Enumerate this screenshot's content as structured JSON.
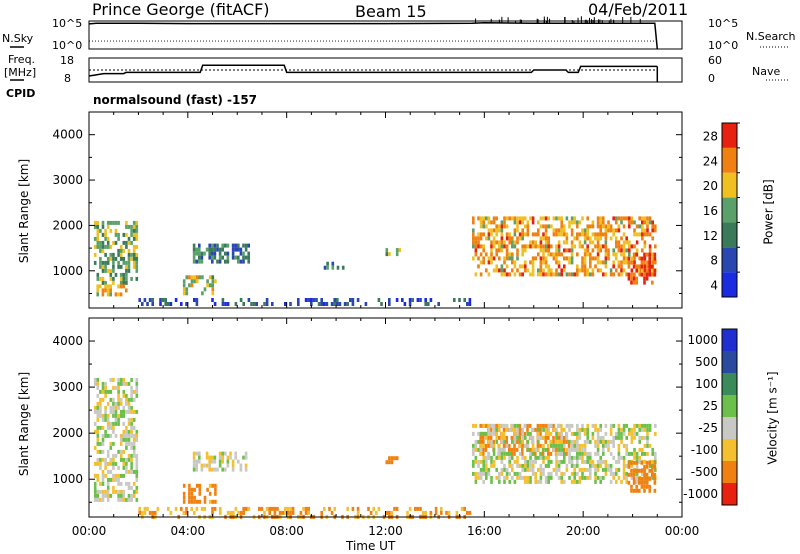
{
  "header": {
    "station": "Prince George (fitACF)",
    "beam": "Beam 15",
    "date": "04/Feb/2011"
  },
  "labels": {
    "nsky": "N.Sky",
    "nsky_ticks": [
      "10^5",
      "10^0"
    ],
    "nsearch": "N.Search",
    "freq": "Freq.",
    "freq_unit": "[MHz]",
    "freq_ticks": [
      "18",
      "8"
    ],
    "nave_ticks": [
      "60",
      "0"
    ],
    "nave": "Nave",
    "cpid": "CPID",
    "cpid_value": "normalsound (fast) -157",
    "ylabel": "Slant Range [km]",
    "xlabel": "Time UT",
    "power_label": "Power [dB]",
    "velocity_label": "Velocity [m s⁻¹]"
  },
  "chart_data": [
    {
      "type": "line",
      "title": "N.Sky / N.Search",
      "x_range": [
        0,
        24
      ],
      "y_scale": "log",
      "y_ticks": [
        "10^5",
        "10^0"
      ],
      "series": [
        {
          "name": "N.Sky",
          "x": [
            0,
            0.3,
            2,
            4,
            8,
            12,
            15.5,
            16,
            18,
            20,
            22,
            22.9,
            23.0
          ],
          "y": [
            30000,
            40000,
            40000,
            35000,
            35000,
            35000,
            40000,
            50000,
            40000,
            40000,
            40000,
            40000,
            1
          ]
        },
        {
          "name": "N.Search",
          "x": [
            0,
            23
          ],
          "y": [
            5,
            5
          ]
        }
      ]
    },
    {
      "type": "line",
      "title": "Freq / Nave",
      "x_range": [
        0,
        24
      ],
      "left_axis": {
        "label": "Freq. [MHz]",
        "ticks": [
          18,
          8
        ]
      },
      "right_axis": {
        "label": "Nave",
        "ticks": [
          60,
          0
        ]
      },
      "series": [
        {
          "name": "Freq",
          "x": [
            0,
            0.6,
            1.4,
            1.5,
            4.5,
            4.6,
            7.9,
            8.0,
            17.9,
            18.0,
            19.3,
            19.4,
            19.8,
            19.9,
            23.0
          ],
          "y": [
            10.5,
            11.5,
            11.5,
            12,
            12,
            15,
            15,
            12,
            12,
            13,
            13,
            12,
            12,
            14.5,
            14.5
          ]
        },
        {
          "name": "Nave",
          "x": [
            0,
            23
          ],
          "y": [
            30,
            30
          ]
        }
      ]
    },
    {
      "type": "heatmap",
      "title": "Power",
      "xlabel": "Time UT",
      "ylabel": "Slant Range [km]",
      "x_range": [
        0,
        24
      ],
      "y_range": [
        180,
        4500
      ],
      "x_ticks": [
        "00:00",
        "04:00",
        "08:00",
        "12:00",
        "16:00",
        "20:00",
        "00:00"
      ],
      "y_ticks": [
        1000,
        2000,
        3000,
        4000
      ],
      "colorbar": {
        "label": "Power [dB]",
        "ticks": [
          4,
          8,
          12,
          16,
          20,
          24,
          28
        ]
      },
      "regions": [
        {
          "t0": 0.2,
          "t1": 2.0,
          "r0": 700,
          "r1": 2100,
          "level_db": 14
        },
        {
          "t0": 0.3,
          "t1": 1.6,
          "r0": 400,
          "r1": 700,
          "level_db": 18
        },
        {
          "t0": 3.8,
          "t1": 5.2,
          "r0": 500,
          "r1": 900,
          "level_db": 16
        },
        {
          "t0": 4.2,
          "t1": 6.5,
          "r0": 1200,
          "r1": 1600,
          "level_db": 10
        },
        {
          "t0": 9.5,
          "t1": 10.5,
          "r0": 1000,
          "r1": 1200,
          "level_db": 10
        },
        {
          "t0": 12.0,
          "t1": 12.6,
          "r0": 1300,
          "r1": 1500,
          "level_db": 16
        },
        {
          "t0": 15.5,
          "t1": 23.0,
          "r0": 900,
          "r1": 2200,
          "level_db": 20
        },
        {
          "t0": 21.8,
          "t1": 23.0,
          "r0": 700,
          "r1": 1400,
          "level_db": 24
        },
        {
          "t0": 2.0,
          "t1": 15.5,
          "r0": 180,
          "r1": 400,
          "level_db": 6
        }
      ]
    },
    {
      "type": "heatmap",
      "title": "Velocity",
      "xlabel": "Time UT",
      "ylabel": "Slant Range [km]",
      "x_range": [
        0,
        24
      ],
      "y_range": [
        180,
        4500
      ],
      "x_ticks": [
        "00:00",
        "04:00",
        "08:00",
        "12:00",
        "16:00",
        "20:00",
        "00:00"
      ],
      "y_ticks": [
        1000,
        2000,
        3000,
        4000
      ],
      "colorbar": {
        "label": "Velocity [m s⁻¹]",
        "ticks": [
          1000,
          500,
          100,
          25,
          -25,
          -100,
          -500,
          -1000
        ]
      },
      "regions": [
        {
          "t0": 0.2,
          "t1": 2.0,
          "r0": 500,
          "r1": 3200,
          "velocity": 0
        },
        {
          "t0": 4.2,
          "t1": 6.5,
          "r0": 1200,
          "r1": 1600,
          "velocity": 0
        },
        {
          "t0": 3.8,
          "t1": 5.2,
          "r0": 500,
          "r1": 900,
          "velocity": -150
        },
        {
          "t0": 12.0,
          "t1": 12.6,
          "r0": 1300,
          "r1": 1500,
          "velocity": -150
        },
        {
          "t0": 15.8,
          "t1": 19.5,
          "r0": 1500,
          "r1": 2200,
          "velocity": -150
        },
        {
          "t0": 15.5,
          "t1": 23.0,
          "r0": 900,
          "r1": 2200,
          "velocity": 0
        },
        {
          "t0": 21.8,
          "t1": 23.0,
          "r0": 700,
          "r1": 1400,
          "velocity": -400
        },
        {
          "t0": 2.0,
          "t1": 15.5,
          "r0": 180,
          "r1": 400,
          "velocity": -100
        }
      ]
    }
  ]
}
